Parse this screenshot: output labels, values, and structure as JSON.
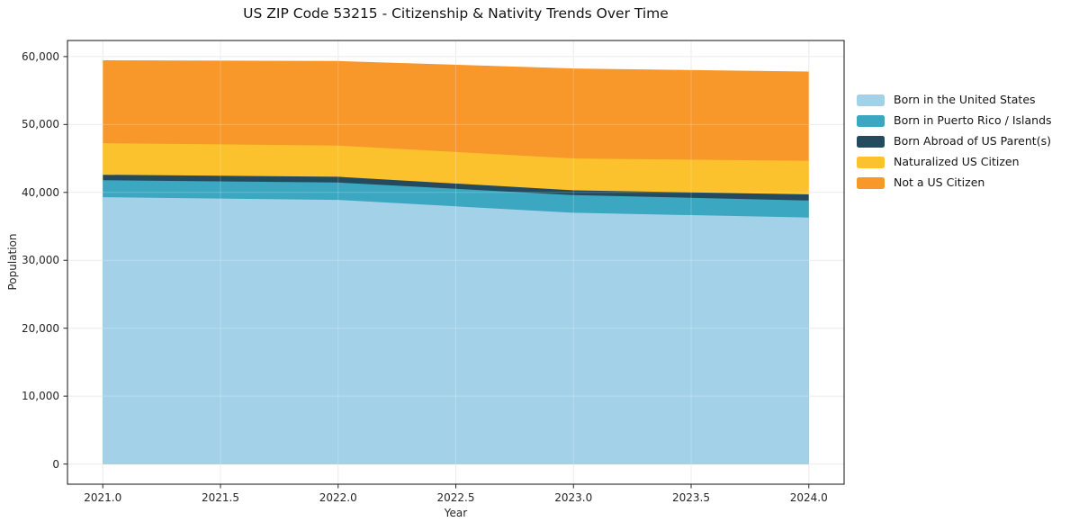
{
  "chart_data": {
    "type": "area",
    "stacked": true,
    "title": "US ZIP Code 53215 - Citizenship & Nativity Trends Over Time",
    "xlabel": "Year",
    "ylabel": "Population",
    "x": [
      2021,
      2022,
      2023,
      2024
    ],
    "series": [
      {
        "name": "Born in the United States",
        "color": "#a3d2e8",
        "values": [
          39300,
          38900,
          37000,
          36300
        ]
      },
      {
        "name": "Born in Puerto Rico / Islands",
        "color": "#3ba7c1",
        "values": [
          2500,
          2550,
          2600,
          2500
        ]
      },
      {
        "name": "Born Abroad of US Parent(s)",
        "color": "#234a5d",
        "values": [
          800,
          850,
          700,
          900
        ]
      },
      {
        "name": "Naturalized US Citizen",
        "color": "#fcc22d",
        "values": [
          4650,
          4600,
          4700,
          4950
        ]
      },
      {
        "name": "Not a US Citizen",
        "color": "#f8982a",
        "values": [
          12200,
          12450,
          13250,
          13150
        ]
      }
    ],
    "totals": [
      59450,
      59350,
      58250,
      57800
    ],
    "xlim": [
      2020.85,
      2024.15
    ],
    "ylim": [
      -2970,
      62370
    ],
    "xticks": {
      "values": [
        2021,
        2021.5,
        2022,
        2022.5,
        2023,
        2023.5,
        2024
      ],
      "labels": [
        "2021.0",
        "2021.5",
        "2022.0",
        "2022.5",
        "2023.0",
        "2023.5",
        "2024.0"
      ]
    },
    "yticks": {
      "values": [
        0,
        10000,
        20000,
        30000,
        40000,
        50000,
        60000
      ],
      "labels": [
        "0",
        "10,000",
        "20,000",
        "30,000",
        "40,000",
        "50,000",
        "60,000"
      ]
    },
    "grid": true,
    "legend_position": "right-outside",
    "colors": {
      "grid": "#e7e7e7",
      "spine": "#262626",
      "tick_text": "#262626",
      "background": "#ffffff"
    }
  }
}
